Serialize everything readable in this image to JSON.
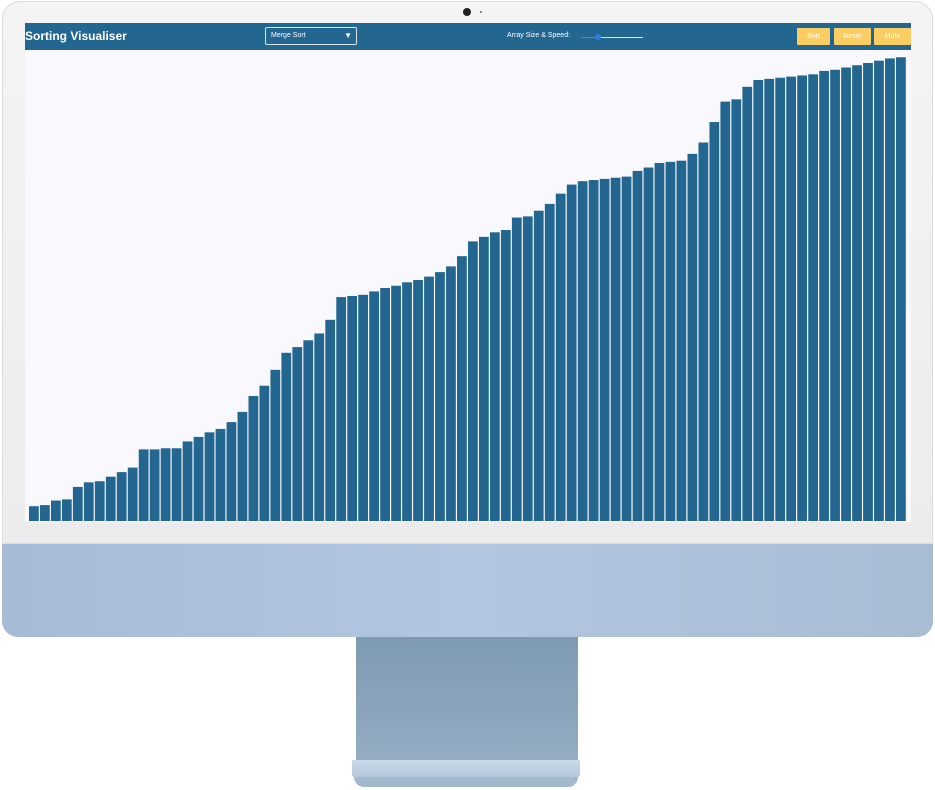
{
  "app": {
    "title": "Sorting Visualiser"
  },
  "algorithm_select": {
    "selected": "Merge Sort"
  },
  "controls": {
    "size_speed_label": "Array Size & Speed:",
    "slider_value": 0.27,
    "sort_label": "Sort",
    "reset_label": "Reset",
    "mute_label": "Mute"
  },
  "colors": {
    "navbar": "#23668f",
    "bar": "#23668f",
    "button": "#fccd62",
    "background": "#f8f8fd"
  },
  "array_values": [
    13,
    14,
    18,
    19,
    30,
    34,
    35,
    39,
    43,
    47,
    63,
    63,
    64,
    64,
    70,
    74,
    78,
    81,
    87,
    96,
    110,
    119,
    133,
    148,
    153,
    159,
    165,
    177,
    197,
    198,
    199,
    202,
    205,
    207,
    210,
    212,
    215,
    219,
    224,
    233,
    246,
    250,
    254,
    256,
    267,
    268,
    273,
    279,
    288,
    296,
    299,
    300,
    301,
    302,
    303,
    308,
    311,
    315,
    316,
    317,
    323,
    333,
    351,
    369,
    371,
    382,
    388,
    389,
    390,
    391,
    392,
    393,
    396,
    397,
    399,
    401,
    403,
    405,
    407,
    408
  ]
}
